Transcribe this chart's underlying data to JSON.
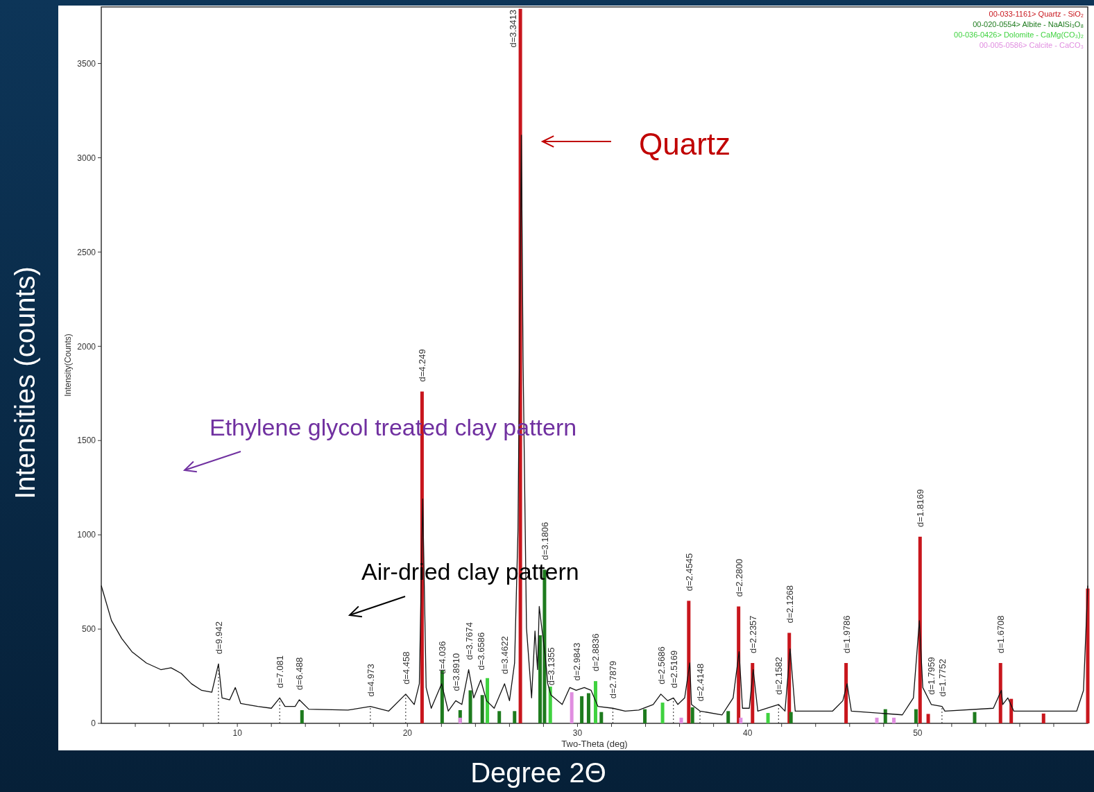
{
  "chart_data": {
    "type": "line",
    "xlabel": "Two-Theta (deg)",
    "ylabel": "Intensity(Counts)",
    "xlim": [
      2,
      60
    ],
    "ylim": [
      0,
      3800
    ],
    "xticks": [
      {
        "value": 4,
        "label": null
      },
      {
        "value": 6,
        "label": null
      },
      {
        "value": 8,
        "label": null
      },
      10,
      {
        "value": 12,
        "label": null
      },
      {
        "value": 14,
        "label": null
      },
      {
        "value": 16,
        "label": null
      },
      {
        "value": 18,
        "label": null
      },
      20,
      {
        "value": 22,
        "label": null
      },
      {
        "value": 24,
        "label": null
      },
      {
        "value": 26,
        "label": null
      },
      {
        "value": 28,
        "label": null
      },
      30,
      {
        "value": 32,
        "label": null
      },
      {
        "value": 34,
        "label": null
      },
      {
        "value": 36,
        "label": null
      },
      {
        "value": 38,
        "label": null
      },
      40,
      {
        "value": 42,
        "label": null
      },
      {
        "value": 44,
        "label": null
      },
      {
        "value": 46,
        "label": null
      },
      {
        "value": 48,
        "label": null
      },
      50,
      {
        "value": 52,
        "label": null
      },
      {
        "value": 54,
        "label": null
      },
      {
        "value": 56,
        "label": null
      },
      {
        "value": 58,
        "label": null
      }
    ],
    "yticks": [
      0,
      500,
      1000,
      1500,
      2000,
      2500,
      3000,
      3500
    ],
    "legend": "top right",
    "series": [
      {
        "color": "#111111",
        "x": [
          2,
          2.6,
          3.2,
          3.8,
          4.65,
          5.5,
          6.1,
          6.7,
          7.3,
          7.9,
          8.5,
          8.89,
          9.1,
          9.55,
          9.88,
          10.2,
          11.2,
          12,
          12.49,
          12.8,
          13.4,
          13.64,
          14.2,
          16.5,
          17.82,
          18.9,
          19.9,
          20.4,
          20.7,
          20.9,
          21.1,
          21.4,
          22.01,
          22.4,
          22.84,
          23.2,
          23.6,
          23.9,
          24.31,
          24.65,
          25.1,
          25.71,
          26,
          26.3,
          26.5,
          26.7,
          26.8,
          27,
          27.3,
          27.5,
          27.65,
          27.75,
          27.9,
          28.1,
          28.25,
          28.44,
          29.1,
          29.55,
          29.92,
          30.4,
          30.8,
          31.2,
          32.08,
          32.8,
          33.6,
          34.45,
          34.9,
          35.3,
          35.64,
          35.9,
          36.3,
          36.6,
          36.7,
          37.2,
          38.5,
          39.15,
          39.5,
          39.7,
          40.1,
          40.33,
          40.6,
          41.82,
          42.2,
          42.5,
          42.8,
          45,
          45.6,
          45.85,
          46.1,
          49.1,
          49.75,
          50.1,
          50.3,
          50.8,
          51.43,
          51.6,
          54.45,
          54.92,
          55,
          55.3,
          55.65,
          59.35,
          59.75,
          60
        ],
        "values": [
          730,
          545,
          450,
          380,
          320,
          285,
          295,
          265,
          210,
          175,
          165,
          315,
          135,
          125,
          190,
          105,
          90,
          80,
          135,
          90,
          90,
          125,
          75,
          70,
          90,
          65,
          155,
          100,
          210,
          1190,
          190,
          80,
          210,
          65,
          120,
          100,
          285,
          135,
          230,
          120,
          80,
          210,
          120,
          320,
          1025,
          3120,
          1915,
          505,
          135,
          490,
          285,
          620,
          505,
          360,
          210,
          150,
          100,
          190,
          175,
          190,
          175,
          90,
          80,
          65,
          70,
          100,
          155,
          120,
          135,
          100,
          135,
          320,
          100,
          65,
          45,
          135,
          380,
          80,
          80,
          285,
          65,
          100,
          65,
          395,
          65,
          65,
          120,
          210,
          65,
          45,
          135,
          545,
          190,
          100,
          90,
          65,
          80,
          175,
          100,
          135,
          65,
          65,
          175,
          730
        ]
      },
      {
        "type": "bar",
        "name": "00-033-1161> Quartz - SiO₂",
        "color": "#c8161d",
        "x": [
          20.86,
          26.64,
          36.54,
          39.47,
          40.29,
          42.45,
          45.79,
          50.14,
          50.62,
          54.87,
          55.5,
          57.4,
          60
        ],
        "values": [
          1760,
          3790,
          650,
          620,
          320,
          480,
          320,
          990,
          50,
          320,
          130,
          52,
          715
        ]
      },
      {
        "type": "bar",
        "name": "00-020-0554> Albite - NaAlSi₃O₈",
        "color": "#1e7b1e",
        "x": [
          13.8,
          22.04,
          23.1,
          23.7,
          24.4,
          25.4,
          26.3,
          27.8,
          28.06,
          30.25,
          30.65,
          31.4,
          33.96,
          36.76,
          38.86,
          42.55,
          48.1,
          49.9,
          53.35
        ],
        "values": [
          70,
          280,
          70,
          175,
          150,
          65,
          65,
          467,
          815,
          144,
          160,
          60,
          75,
          85,
          65,
          60,
          75,
          75,
          60
        ]
      },
      {
        "type": "bar",
        "name": "00-036-0426> Dolomite - CaMg(CO₃)₂",
        "color": "#3fd23f",
        "x": [
          24.7,
          28.4,
          31.06,
          35,
          41.2
        ],
        "values": [
          240,
          195,
          224,
          110,
          55
        ]
      },
      {
        "type": "bar",
        "name": "00-005-0586> Calcite - CaCO₃",
        "color": "#e08ee0",
        "x": [
          23.1,
          29.66,
          36.1,
          39.6,
          47.6,
          48.6
        ],
        "values": [
          30,
          165,
          30,
          30,
          30,
          30
        ]
      }
    ],
    "annotations": [
      {
        "text": "d=9.942",
        "x": 8.89,
        "y": 315
      },
      {
        "text": "d=7.081",
        "x": 12.49,
        "y": 135
      },
      {
        "text": "d=6.488",
        "x": 13.64,
        "y": 125
      },
      {
        "text": "d=4.973",
        "x": 17.82,
        "y": 90
      },
      {
        "text": "d=4.458",
        "x": 19.9,
        "y": 155
      },
      {
        "text": "d=4.249",
        "x": 20.86,
        "y": 1760
      },
      {
        "text": "d=4.036",
        "x": 22.01,
        "y": 210
      },
      {
        "text": "d=3.8910",
        "x": 22.84,
        "y": 120
      },
      {
        "text": "d=3.7674",
        "x": 23.6,
        "y": 285
      },
      {
        "text": "d=3.6586",
        "x": 24.31,
        "y": 230
      },
      {
        "text": "d=3.4622",
        "x": 25.71,
        "y": 210
      },
      {
        "text": "d=3.3413",
        "x": 26.64,
        "y": 3790
      },
      {
        "text": "d=3.1806",
        "x": 28.06,
        "y": 815
      },
      {
        "text": "d=3.1355",
        "x": 28.44,
        "y": 150
      },
      {
        "text": "d=2.9843",
        "x": 29.92,
        "y": 175
      },
      {
        "text": "d=2.8836",
        "x": 31.06,
        "y": 224
      },
      {
        "text": "d=2.7879",
        "x": 32.08,
        "y": 80
      },
      {
        "text": "d=2.5686",
        "x": 34.9,
        "y": 155
      },
      {
        "text": "d=2.5169",
        "x": 35.64,
        "y": 135
      },
      {
        "text": "d=2.4545",
        "x": 36.54,
        "y": 650
      },
      {
        "text": "d=2.4148",
        "x": 37.2,
        "y": 65
      },
      {
        "text": "d=2.2800",
        "x": 39.47,
        "y": 620
      },
      {
        "text": "d=2.2357",
        "x": 40.29,
        "y": 320
      },
      {
        "text": "d=2.1582",
        "x": 41.82,
        "y": 100
      },
      {
        "text": "d=2.1268",
        "x": 42.45,
        "y": 480
      },
      {
        "text": "d=1.9786",
        "x": 45.79,
        "y": 320
      },
      {
        "text": "d=1.8169",
        "x": 50.14,
        "y": 990
      },
      {
        "text": "d=1.7959",
        "x": 50.8,
        "y": 100
      },
      {
        "text": "d=1.7752",
        "x": 51.43,
        "y": 90
      },
      {
        "text": "d=1.6708",
        "x": 54.87,
        "y": 320
      },
      "Quartz",
      "Ethylene glycol treated clay pattern",
      "Air-dried clay pattern",
      "Intensities (counts)",
      "Degree 2Θ"
    ]
  }
}
